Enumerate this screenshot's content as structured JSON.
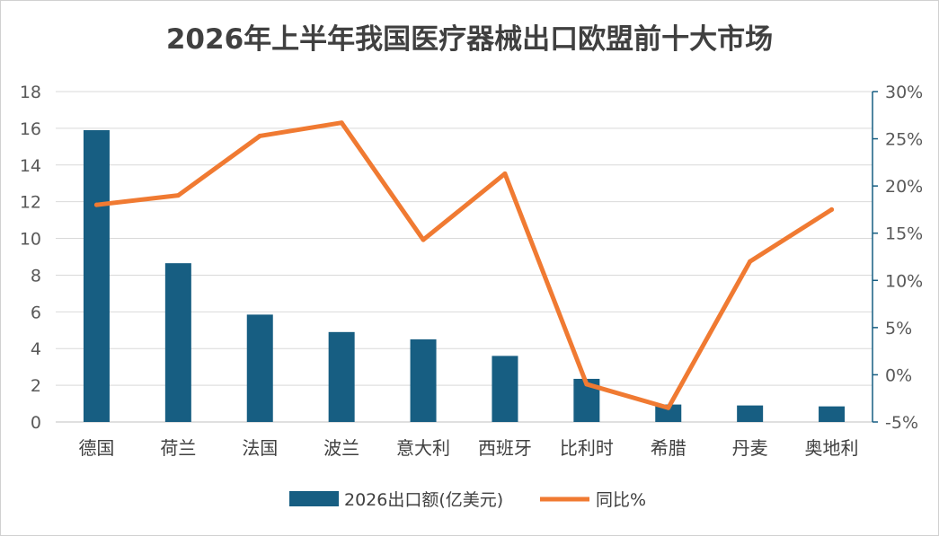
{
  "chart_data": {
    "type": "bar",
    "title": "2026年上半年我国医疗器械出口欧盟前十大市场",
    "categories": [
      "德国",
      "荷兰",
      "法国",
      "波兰",
      "意大利",
      "西班牙",
      "比利时",
      "希腊",
      "丹麦",
      "奥地利"
    ],
    "series": [
      {
        "name": "2026出口额(亿美元)",
        "type": "bar",
        "axis": "left",
        "color": "#175E82",
        "values": [
          15.9,
          8.65,
          5.85,
          4.9,
          4.5,
          3.6,
          2.35,
          0.95,
          0.9,
          0.85
        ]
      },
      {
        "name": "同比%",
        "type": "line",
        "axis": "right",
        "color": "#F07A32",
        "values": [
          18.0,
          19.0,
          25.3,
          26.7,
          14.3,
          21.3,
          -1.0,
          -3.5,
          12.0,
          17.5
        ]
      }
    ],
    "y_left": {
      "min": 0,
      "max": 18,
      "step": 2,
      "tick_labels": [
        "0",
        "2",
        "4",
        "6",
        "8",
        "10",
        "12",
        "14",
        "16",
        "18"
      ]
    },
    "y_right": {
      "min": -5,
      "max": 30,
      "step": 5,
      "tick_labels": [
        "-5%",
        "0%",
        "5%",
        "10%",
        "15%",
        "20%",
        "25%",
        "30%"
      ]
    },
    "grid": true,
    "legend_position": "bottom"
  },
  "colors": {
    "bar": "#175E82",
    "line": "#F07A32",
    "grid": "#d9d9d9",
    "right_axis": "#175E82"
  }
}
